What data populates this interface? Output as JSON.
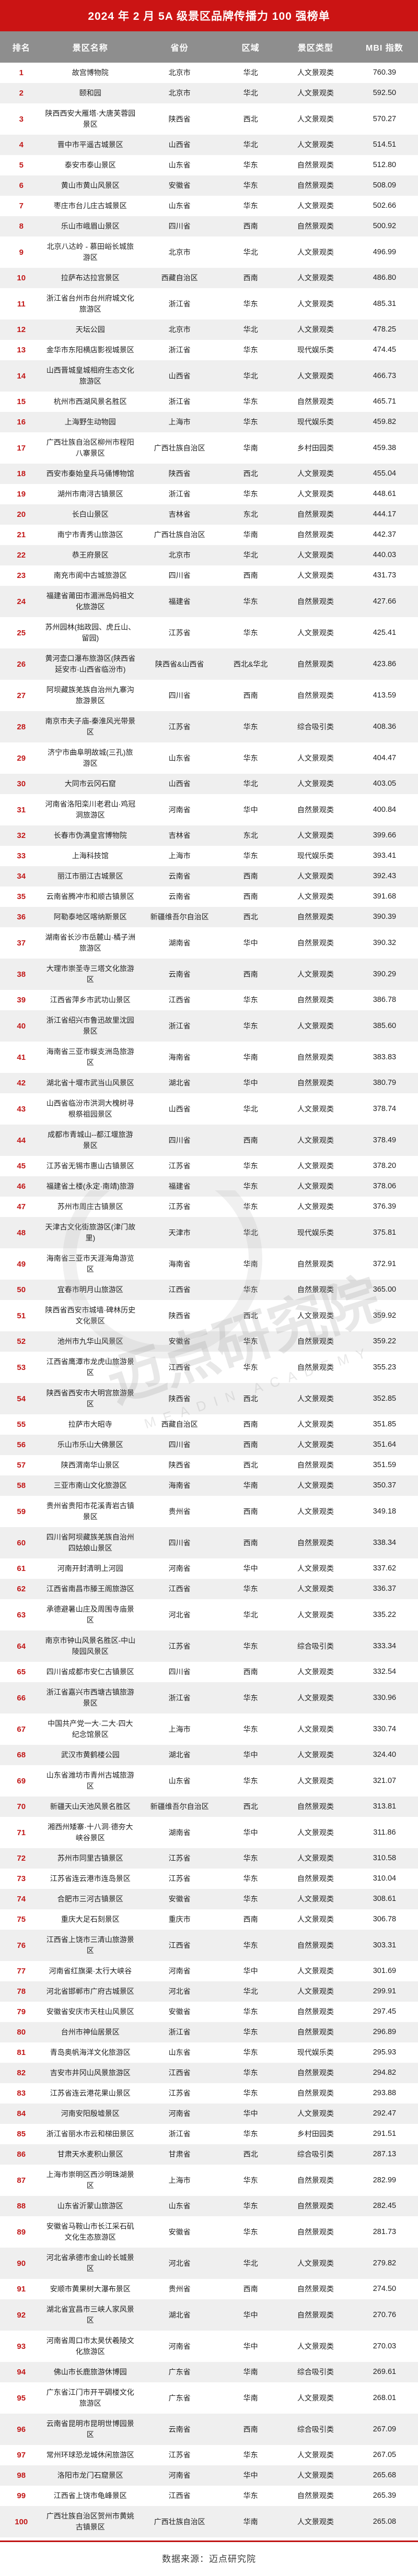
{
  "title": "2024 年 2 月 5A 级景区品牌传播力 100 强榜单",
  "footer": {
    "source": "数据来源：迈点研究院"
  },
  "watermark": {
    "text": "迈点研究院",
    "subtext": "MEADIN ACADEMY"
  },
  "colors": {
    "accent_red": "#cb1414",
    "header_gray": "#8e8e8e",
    "row_alt_gray": "#efefef",
    "rank_red": "#c21717"
  },
  "table": {
    "columns": [
      "排名",
      "景区名称",
      "省份",
      "区域",
      "景区类型",
      "MBI 指数"
    ],
    "rows": [
      [
        "1",
        "故宫博物院",
        "北京市",
        "华北",
        "人文景观类",
        "760.39"
      ],
      [
        "2",
        "颐和园",
        "北京市",
        "华北",
        "人文景观类",
        "592.50"
      ],
      [
        "3",
        "陕西西安大雁塔·大唐芙蓉园景区",
        "陕西省",
        "西北",
        "人文景观类",
        "570.27"
      ],
      [
        "4",
        "晋中市平遥古城景区",
        "山西省",
        "华北",
        "人文景观类",
        "514.51"
      ],
      [
        "5",
        "泰安市泰山景区",
        "山东省",
        "华东",
        "自然景观类",
        "512.80"
      ],
      [
        "6",
        "黄山市黄山风景区",
        "安徽省",
        "华东",
        "自然景观类",
        "508.09"
      ],
      [
        "7",
        "枣庄市台儿庄古城景区",
        "山东省",
        "华东",
        "人文景观类",
        "502.66"
      ],
      [
        "8",
        "乐山市峨眉山景区",
        "四川省",
        "西南",
        "自然景观类",
        "500.92"
      ],
      [
        "9",
        "北京八达岭 - 慕田峪长城旅游区",
        "北京市",
        "华北",
        "人文景观类",
        "496.99"
      ],
      [
        "10",
        "拉萨布达拉宫景区",
        "西藏自治区",
        "西南",
        "人文景观类",
        "486.80"
      ],
      [
        "11",
        "浙江省台州市台州府城文化旅游区",
        "浙江省",
        "华东",
        "人文景观类",
        "485.31"
      ],
      [
        "12",
        "天坛公园",
        "北京市",
        "华北",
        "人文景观类",
        "478.25"
      ],
      [
        "13",
        "金华市东阳横店影视城景区",
        "浙江省",
        "华东",
        "现代娱乐类",
        "474.45"
      ],
      [
        "14",
        "山西晋城皇城相府生态文化旅游区",
        "山西省",
        "华北",
        "人文景观类",
        "466.73"
      ],
      [
        "15",
        "杭州市西湖风景名胜区",
        "浙江省",
        "华东",
        "自然景观类",
        "465.71"
      ],
      [
        "16",
        "上海野生动物园",
        "上海市",
        "华东",
        "现代娱乐类",
        "459.82"
      ],
      [
        "17",
        "广西壮族自治区柳州市程阳八寨景区",
        "广西壮族自治区",
        "华南",
        "乡村田园类",
        "459.38"
      ],
      [
        "18",
        "西安市秦始皇兵马俑博物馆",
        "陕西省",
        "西北",
        "人文景观类",
        "455.04"
      ],
      [
        "19",
        "湖州市南浔古镇景区",
        "浙江省",
        "华东",
        "人文景观类",
        "448.61"
      ],
      [
        "20",
        "长白山景区",
        "吉林省",
        "东北",
        "自然景观类",
        "444.17"
      ],
      [
        "21",
        "南宁市青秀山旅游区",
        "广西壮族自治区",
        "华南",
        "自然景观类",
        "442.37"
      ],
      [
        "22",
        "恭王府景区",
        "北京市",
        "华北",
        "人文景观类",
        "440.03"
      ],
      [
        "23",
        "南充市阆中古城旅游区",
        "四川省",
        "西南",
        "人文景观类",
        "431.73"
      ],
      [
        "24",
        "福建省莆田市湄洲岛妈祖文化旅游区",
        "福建省",
        "华东",
        "自然景观类",
        "427.66"
      ],
      [
        "25",
        "苏州园林(拙政园、虎丘山、留园)",
        "江苏省",
        "华东",
        "人文景观类",
        "425.41"
      ],
      [
        "26",
        "黄河壶口瀑布旅游区(陕西省延安市·山西省临汾市)",
        "陕西省&山西省",
        "西北&华北",
        "自然景观类",
        "423.86"
      ],
      [
        "27",
        "阿坝藏族羌族自治州九寨沟旅游景区",
        "四川省",
        "西南",
        "自然景观类",
        "413.59"
      ],
      [
        "28",
        "南京市夫子庙-秦淮风光带景区",
        "江苏省",
        "华东",
        "综合吸引类",
        "408.36"
      ],
      [
        "29",
        "济宁市曲阜明故城(三孔)旅游区",
        "山东省",
        "华东",
        "人文景观类",
        "404.47"
      ],
      [
        "30",
        "大同市云冈石窟",
        "山西省",
        "华北",
        "人文景观类",
        "403.05"
      ],
      [
        "31",
        "河南省洛阳栾川老君山·鸡冠洞旅游区",
        "河南省",
        "华中",
        "自然景观类",
        "400.84"
      ],
      [
        "32",
        "长春市伪满皇宫博物院",
        "吉林省",
        "东北",
        "人文景观类",
        "399.66"
      ],
      [
        "33",
        "上海科技馆",
        "上海市",
        "华东",
        "现代娱乐类",
        "393.41"
      ],
      [
        "34",
        "丽江市丽江古城景区",
        "云南省",
        "西南",
        "人文景观类",
        "392.43"
      ],
      [
        "35",
        "云南省腾冲市和顺古镇景区",
        "云南省",
        "西南",
        "人文景观类",
        "391.68"
      ],
      [
        "36",
        "阿勒泰地区喀纳斯景区",
        "新疆维吾尔自治区",
        "西北",
        "自然景观类",
        "390.39"
      ],
      [
        "37",
        "湖南省长沙市岳麓山·橘子洲旅游区",
        "湖南省",
        "华中",
        "自然景观类",
        "390.32"
      ],
      [
        "38",
        "大理市崇圣寺三塔文化旅游区",
        "云南省",
        "西南",
        "人文景观类",
        "390.29"
      ],
      [
        "39",
        "江西省萍乡市武功山景区",
        "江西省",
        "华东",
        "自然景观类",
        "386.78"
      ],
      [
        "40",
        "浙江省绍兴市鲁迅故里沈园景区",
        "浙江省",
        "华东",
        "人文景观类",
        "385.60"
      ],
      [
        "41",
        "海南省三亚市蜈支洲岛旅游区",
        "海南省",
        "华南",
        "自然景观类",
        "383.83"
      ],
      [
        "42",
        "湖北省十堰市武当山风景区",
        "湖北省",
        "华中",
        "自然景观类",
        "380.79"
      ],
      [
        "43",
        "山西省临汾市洪洞大槐树寻根祭祖园景区",
        "山西省",
        "华北",
        "人文景观类",
        "378.74"
      ],
      [
        "44",
        "成都市青城山--都江堰旅游景区",
        "四川省",
        "西南",
        "人文景观类",
        "378.49"
      ],
      [
        "45",
        "江苏省无锡市惠山古镇景区",
        "江苏省",
        "华东",
        "人文景观类",
        "378.20"
      ],
      [
        "46",
        "福建省土楼(永定·南靖)旅游",
        "福建省",
        "华东",
        "人文景观类",
        "378.06"
      ],
      [
        "47",
        "苏州市周庄古镇景区",
        "江苏省",
        "华东",
        "人文景观类",
        "376.39"
      ],
      [
        "48",
        "天津古文化街旅游区(津门故里)",
        "天津市",
        "华北",
        "现代娱乐类",
        "375.81"
      ],
      [
        "49",
        "海南省三亚市天涯海角游览区",
        "海南省",
        "华南",
        "自然景观类",
        "372.91"
      ],
      [
        "50",
        "宜春市明月山旅游区",
        "江西省",
        "华东",
        "自然景观类",
        "365.00"
      ],
      [
        "51",
        "陕西省西安市城墙·碑林历史文化景区",
        "陕西省",
        "西北",
        "人文景观类",
        "359.92"
      ],
      [
        "52",
        "池州市九华山风景区",
        "安徽省",
        "华东",
        "自然景观类",
        "359.22"
      ],
      [
        "53",
        "江西省鹰潭市龙虎山旅游景区",
        "江西省",
        "华东",
        "自然景观类",
        "355.23"
      ],
      [
        "54",
        "陕西省西安市大明宫旅游景区",
        "陕西省",
        "西北",
        "人文景观类",
        "352.85"
      ],
      [
        "55",
        "拉萨市大昭寺",
        "西藏自治区",
        "西南",
        "人文景观类",
        "351.85"
      ],
      [
        "56",
        "乐山市乐山大佛景区",
        "四川省",
        "西南",
        "人文景观类",
        "351.64"
      ],
      [
        "57",
        "陕西渭南华山景区",
        "陕西省",
        "西北",
        "自然景观类",
        "351.59"
      ],
      [
        "58",
        "三亚市南山文化旅游区",
        "海南省",
        "华南",
        "人文景观类",
        "350.37"
      ],
      [
        "59",
        "贵州省贵阳市花溪青岩古镇景区",
        "贵州省",
        "西南",
        "人文景观类",
        "349.18"
      ],
      [
        "60",
        "四川省阿坝藏族羌族自治州四姑娘山景区",
        "四川省",
        "西南",
        "自然景观类",
        "338.34"
      ],
      [
        "61",
        "河南开封清明上河园",
        "河南省",
        "华中",
        "人文景观类",
        "337.62"
      ],
      [
        "62",
        "江西省南昌市滕王阁旅游区",
        "江西省",
        "华东",
        "人文景观类",
        "336.37"
      ],
      [
        "63",
        "承德避暑山庄及周围寺庙景区",
        "河北省",
        "华北",
        "人文景观类",
        "335.22"
      ],
      [
        "64",
        "南京市钟山风景名胜区-中山陵园风景区",
        "江苏省",
        "华东",
        "综合吸引类",
        "333.34"
      ],
      [
        "65",
        "四川省成都市安仁古镇景区",
        "四川省",
        "西南",
        "人文景观类",
        "332.54"
      ],
      [
        "66",
        "浙江省嘉兴市西塘古镇旅游景区",
        "浙江省",
        "华东",
        "人文景观类",
        "330.96"
      ],
      [
        "67",
        "中国共产党一大·二大·四大纪念馆景区",
        "上海市",
        "华东",
        "人文景观类",
        "330.74"
      ],
      [
        "68",
        "武汉市黄鹤楼公园",
        "湖北省",
        "华中",
        "人文景观类",
        "324.40"
      ],
      [
        "69",
        "山东省潍坊市青州古城旅游区",
        "山东省",
        "华东",
        "人文景观类",
        "321.07"
      ],
      [
        "70",
        "新疆天山天池风景名胜区",
        "新疆维吾尔自治区",
        "西北",
        "自然景观类",
        "313.81"
      ],
      [
        "71",
        "湘西州矮寨·十八洞·德夯大峡谷景区",
        "湖南省",
        "华中",
        "人文景观类",
        "311.86"
      ],
      [
        "72",
        "苏州市同里古镇景区",
        "江苏省",
        "华东",
        "人文景观类",
        "310.58"
      ],
      [
        "73",
        "江苏省连云港市连岛景区",
        "江苏省",
        "华东",
        "自然景观类",
        "310.04"
      ],
      [
        "74",
        "合肥市三河古镇景区",
        "安徽省",
        "华东",
        "人文景观类",
        "308.61"
      ],
      [
        "75",
        "重庆大足石刻景区",
        "重庆市",
        "西南",
        "人文景观类",
        "306.78"
      ],
      [
        "76",
        "江西省上饶市三清山旅游景区",
        "江西省",
        "华东",
        "自然景观类",
        "303.31"
      ],
      [
        "77",
        "河南省红旗渠·太行大峡谷",
        "河南省",
        "华中",
        "人文景观类",
        "301.69"
      ],
      [
        "78",
        "河北省邯郸市广府古城景区",
        "河北省",
        "华北",
        "人文景观类",
        "299.91"
      ],
      [
        "79",
        "安徽省安庆市天柱山风景区",
        "安徽省",
        "华东",
        "自然景观类",
        "297.45"
      ],
      [
        "80",
        "台州市神仙居景区",
        "浙江省",
        "华东",
        "自然景观类",
        "296.89"
      ],
      [
        "81",
        "青岛奥帆海洋文化旅游区",
        "山东省",
        "华东",
        "现代娱乐类",
        "295.93"
      ],
      [
        "82",
        "吉安市井冈山风景旅游区",
        "江西省",
        "华东",
        "自然景观类",
        "294.82"
      ],
      [
        "83",
        "江苏省连云港花果山景区",
        "江苏省",
        "华东",
        "自然景观类",
        "293.88"
      ],
      [
        "84",
        "河南安阳殷墟景区",
        "河南省",
        "华中",
        "人文景观类",
        "292.47"
      ],
      [
        "85",
        "浙江省丽水市云和梯田景区",
        "浙江省",
        "华东",
        "乡村田园类",
        "291.51"
      ],
      [
        "86",
        "甘肃天水麦积山景区",
        "甘肃省",
        "西北",
        "综合吸引类",
        "287.13"
      ],
      [
        "87",
        "上海市崇明区西沙明珠湖景区",
        "上海市",
        "华东",
        "自然景观类",
        "282.99"
      ],
      [
        "88",
        "山东省沂蒙山旅游区",
        "山东省",
        "华东",
        "自然景观类",
        "282.45"
      ],
      [
        "89",
        "安徽省马鞍山市长江采石矶文化生态旅游区",
        "安徽省",
        "华东",
        "自然景观类",
        "281.73"
      ],
      [
        "90",
        "河北省承德市金山岭长城景区",
        "河北省",
        "华北",
        "人文景观类",
        "279.82"
      ],
      [
        "91",
        "安顺市黄果树大瀑布景区",
        "贵州省",
        "西南",
        "自然景观类",
        "274.50"
      ],
      [
        "92",
        "湖北省宜昌市三峡人家风景区",
        "湖北省",
        "华中",
        "自然景观类",
        "270.76"
      ],
      [
        "93",
        "河南省周口市太昊伏羲陵文化旅游区",
        "河南省",
        "华中",
        "人文景观类",
        "270.03"
      ],
      [
        "94",
        "佛山市长鹿旅游休博园",
        "广东省",
        "华南",
        "综合吸引类",
        "269.61"
      ],
      [
        "95",
        "广东省江门市开平碉楼文化旅游区",
        "广东省",
        "华南",
        "人文景观类",
        "268.01"
      ],
      [
        "96",
        "云南省昆明市昆明世博园景区",
        "云南省",
        "西南",
        "综合吸引类",
        "267.09"
      ],
      [
        "97",
        "常州环球恐龙城休闲旅游区",
        "江苏省",
        "华东",
        "人文景观类",
        "267.05"
      ],
      [
        "98",
        "洛阳市龙门石窟景区",
        "河南省",
        "华中",
        "人文景观类",
        "265.68"
      ],
      [
        "99",
        "江西省上饶市龟峰景区",
        "江西省",
        "华东",
        "自然景观类",
        "265.39"
      ],
      [
        "100",
        "广西壮族自治区贺州市黄姚古镇景区",
        "广西壮族自治区",
        "华南",
        "人文景观类",
        "265.08"
      ]
    ]
  }
}
